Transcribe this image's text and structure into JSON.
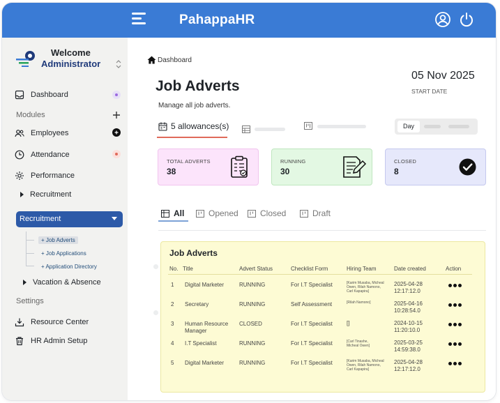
{
  "app": {
    "brand": "PahappaHR"
  },
  "colors": {
    "topbar": "#3a7bd5",
    "accent_red": "#e06a5a",
    "sidebar_active": "#2d5aa8"
  },
  "user": {
    "welcome": "Welcome",
    "role": "Administrator"
  },
  "sidebar": {
    "dashboard": "Dashboard",
    "modules_label": "Modules",
    "employees": "Employees",
    "attendance": "Attendance",
    "performance": "Performance",
    "recruitment_group": "Recruitment",
    "recruitment_active": "Recruitment",
    "sub_items": [
      "+ Job Adverts",
      "+ Job Applications",
      "+ Application Directory"
    ],
    "vacation": "Vacation & Absence",
    "settings_label": "Settings",
    "resource_center": "Resource Center",
    "hr_admin": "HR Admin Setup"
  },
  "main": {
    "breadcrumb": "Dashboard",
    "title": "Job Adverts",
    "subtitle": "Manage all job adverts.",
    "date": "05 Nov 2025",
    "date_label": "START DATE",
    "tab_allowances": "5 allowances(s)",
    "toggle_day": "Day"
  },
  "cards": [
    {
      "label": "TOTAL ADVERTS",
      "value": "38",
      "icon": "clipboard-check-icon",
      "bg": "#fce4fb"
    },
    {
      "label": "RUNNING",
      "value": "30",
      "icon": "document-pen-icon",
      "bg": "#e3f8e3"
    },
    {
      "label": "CLOSED",
      "value": "8",
      "icon": "check-circle-icon",
      "bg": "#e6e8fb"
    }
  ],
  "filter_tabs": [
    "All",
    "Opened",
    "Closed",
    "Draft"
  ],
  "table": {
    "title": "Job Adverts",
    "headers": [
      "No.",
      "Title",
      "Advert Status",
      "Checklist Form",
      "Hiring Team",
      "Date created",
      "Action"
    ],
    "rows": [
      {
        "no": "1",
        "title_lines": [
          "Digital Marketer"
        ],
        "status": "RUNNING",
        "checklist": "For I.T Specialist",
        "team_lines": [
          "[Karim Musaba, Micheal",
          "Owen, Rilah Namono,",
          "Carl Kapapira]"
        ],
        "date_lines": [
          "2025-04-28",
          "12:17:12.0"
        ]
      },
      {
        "no": "2",
        "title_lines": [
          "Secretary"
        ],
        "status": "RUNNING",
        "checklist": "Self Assessment",
        "team_lines": [
          "[Rilah Namono]"
        ],
        "date_lines": [
          "2025-04-16",
          "10:28:54.0"
        ]
      },
      {
        "no": "3",
        "title_lines": [
          "Human Resource",
          "Manager"
        ],
        "status": "CLOSED",
        "checklist": "For I.T Specialist",
        "team_lines": [
          "[]"
        ],
        "date_lines": [
          "2024-10-15",
          "11:20:10.0"
        ]
      },
      {
        "no": "4",
        "title_lines": [
          "I.T Specialist"
        ],
        "status": "RUNNING",
        "checklist": "For I.T Specialist",
        "team_lines": [
          "[Carl Tinashe,",
          "Micheal Owen]"
        ],
        "date_lines": [
          "2025-03-25",
          "14:59:38.0"
        ]
      },
      {
        "no": "5",
        "title_lines": [
          "Digital Marketer"
        ],
        "status": "RUNNING",
        "checklist": "For I.T Specialist",
        "team_lines": [
          "[Karim Musaba, Micheal",
          "Owen, Rilah Namono,",
          "Carl Kapapira]"
        ],
        "date_lines": [
          "2025-04-28",
          "12:17:12.0"
        ]
      }
    ]
  }
}
